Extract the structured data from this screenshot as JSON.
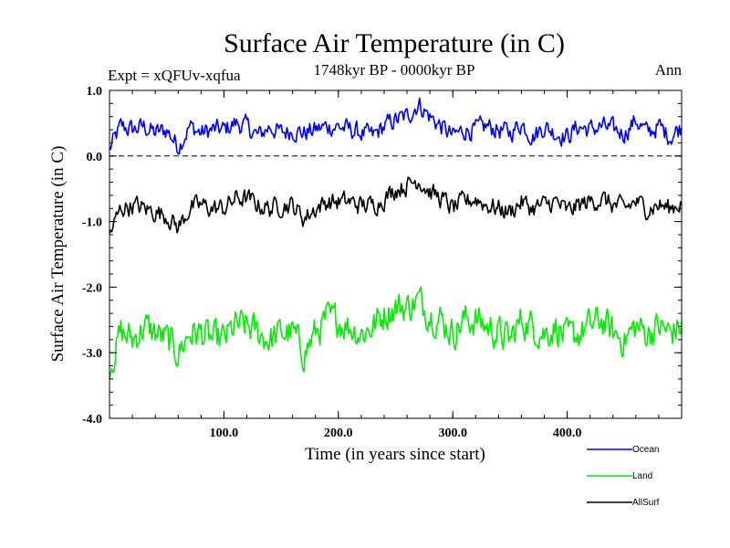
{
  "chart_data": {
    "type": "line",
    "title": "Surface Air Temperature (in C)",
    "subtitle_left": "Expt = xQFUv-xqfua",
    "subtitle_center": "1748kyr BP - 0000kyr BP",
    "subtitle_right": "Ann",
    "xlabel": "Time (in years since start)",
    "ylabel": "Surface Air Temperature (in C)",
    "xlim": [
      0,
      500
    ],
    "ylim": [
      -4.0,
      1.0
    ],
    "xticks": [
      100,
      200,
      300,
      400
    ],
    "xtick_labels": [
      "100.0",
      "200.0",
      "300.0",
      "400.0"
    ],
    "yticks": [
      1.0,
      0.0,
      -1.0,
      -2.0,
      -3.0,
      -4.0
    ],
    "ytick_labels": [
      "1.0",
      "0.0",
      "-1.0",
      "-2.0",
      "-3.0",
      "-4.0"
    ],
    "zero_line": 0.0,
    "legend_position": "bottom-right, outside plot",
    "series": [
      {
        "name": "Ocean",
        "color": "#0000ff",
        "x": [
          0,
          10,
          20,
          30,
          40,
          50,
          60,
          70,
          80,
          90,
          100,
          110,
          120,
          130,
          140,
          150,
          160,
          170,
          180,
          190,
          200,
          210,
          220,
          230,
          240,
          250,
          260,
          270,
          280,
          290,
          300,
          310,
          320,
          330,
          340,
          350,
          360,
          370,
          380,
          390,
          400,
          410,
          420,
          430,
          440,
          450,
          460,
          470,
          480,
          490,
          500
        ],
        "values": [
          0.1,
          0.45,
          0.4,
          0.45,
          0.35,
          0.4,
          0.15,
          0.45,
          0.35,
          0.4,
          0.4,
          0.5,
          0.45,
          0.3,
          0.45,
          0.35,
          0.4,
          0.35,
          0.4,
          0.45,
          0.45,
          0.4,
          0.35,
          0.3,
          0.45,
          0.55,
          0.6,
          0.8,
          0.6,
          0.45,
          0.3,
          0.4,
          0.4,
          0.45,
          0.4,
          0.35,
          0.5,
          0.3,
          0.45,
          0.35,
          0.3,
          0.45,
          0.4,
          0.45,
          0.4,
          0.35,
          0.55,
          0.35,
          0.45,
          0.3,
          0.45
        ]
      },
      {
        "name": "Land",
        "color": "#00ee00",
        "x": [
          0,
          10,
          20,
          30,
          40,
          50,
          60,
          70,
          80,
          90,
          100,
          110,
          120,
          130,
          140,
          150,
          160,
          170,
          180,
          190,
          200,
          210,
          220,
          230,
          240,
          250,
          260,
          270,
          280,
          290,
          300,
          310,
          320,
          330,
          340,
          350,
          360,
          370,
          380,
          390,
          400,
          410,
          420,
          430,
          440,
          450,
          460,
          470,
          480,
          490,
          500
        ],
        "values": [
          -3.2,
          -2.7,
          -2.8,
          -2.6,
          -2.7,
          -2.8,
          -3.0,
          -2.7,
          -2.7,
          -2.8,
          -2.8,
          -2.6,
          -2.6,
          -2.7,
          -2.8,
          -2.7,
          -2.7,
          -3.0,
          -2.7,
          -2.5,
          -2.5,
          -2.6,
          -2.7,
          -2.6,
          -2.4,
          -2.3,
          -2.3,
          -2.2,
          -2.4,
          -2.5,
          -2.7,
          -2.5,
          -2.5,
          -2.6,
          -2.7,
          -2.8,
          -2.5,
          -2.6,
          -2.7,
          -2.6,
          -2.8,
          -2.7,
          -2.6,
          -2.5,
          -2.7,
          -2.8,
          -2.6,
          -2.7,
          -2.6,
          -2.7,
          -2.6
        ]
      },
      {
        "name": "AllSurf",
        "color": "#000000",
        "x": [
          0,
          10,
          20,
          30,
          40,
          50,
          60,
          70,
          80,
          90,
          100,
          110,
          120,
          130,
          140,
          150,
          160,
          170,
          180,
          190,
          200,
          210,
          220,
          230,
          240,
          250,
          260,
          270,
          280,
          290,
          300,
          310,
          320,
          330,
          340,
          350,
          360,
          370,
          380,
          390,
          400,
          410,
          420,
          430,
          440,
          450,
          460,
          470,
          480,
          490,
          500
        ],
        "values": [
          -1.2,
          -0.8,
          -0.75,
          -0.8,
          -0.85,
          -0.9,
          -1.1,
          -0.8,
          -0.75,
          -0.8,
          -0.8,
          -0.65,
          -0.65,
          -0.75,
          -0.8,
          -0.75,
          -0.75,
          -0.95,
          -0.8,
          -0.7,
          -0.7,
          -0.7,
          -0.75,
          -0.75,
          -0.65,
          -0.5,
          -0.45,
          -0.35,
          -0.55,
          -0.65,
          -0.8,
          -0.7,
          -0.65,
          -0.75,
          -0.8,
          -0.85,
          -0.7,
          -0.8,
          -0.75,
          -0.7,
          -0.85,
          -0.75,
          -0.7,
          -0.65,
          -0.75,
          -0.8,
          -0.7,
          -0.8,
          -0.75,
          -0.8,
          -0.7
        ]
      }
    ]
  }
}
